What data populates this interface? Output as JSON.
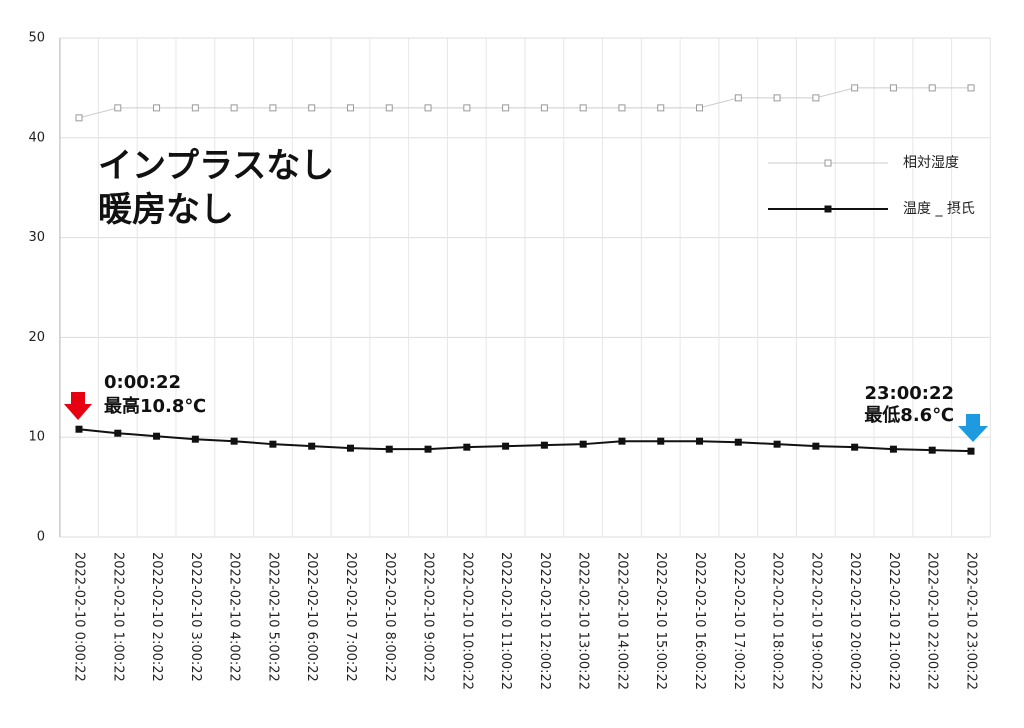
{
  "colors": {
    "humidity": "#cccccc",
    "temperature": "#111111",
    "grid": "#dddddd",
    "high_arrow": "#e60012",
    "low_arrow": "#1e9be0"
  },
  "overlay": {
    "line1": "インプラスなし",
    "line2": "暖房なし"
  },
  "annotations": {
    "high_time": "0:00:22",
    "high_label": "最高10.8℃",
    "low_time": "23:00:22",
    "low_label": "最低8.6℃"
  },
  "legend": {
    "humidity": "相対湿度",
    "temperature": "温度 _ 摂氏"
  },
  "chart_data": {
    "type": "line",
    "title": "",
    "xlabel": "",
    "ylabel": "",
    "ylim": [
      0,
      50
    ],
    "yticks": [
      0,
      10,
      20,
      30,
      40,
      50
    ],
    "grid": true,
    "legend_position": "right",
    "categories": [
      "2022-02-10 0:00:22",
      "2022-02-10 1:00:22",
      "2022-02-10 2:00:22",
      "2022-02-10 3:00:22",
      "2022-02-10 4:00:22",
      "2022-02-10 5:00:22",
      "2022-02-10 6:00:22",
      "2022-02-10 7:00:22",
      "2022-02-10 8:00:22",
      "2022-02-10 9:00:22",
      "2022-02-10 10:00:22",
      "2022-02-10 11:00:22",
      "2022-02-10 12:00:22",
      "2022-02-10 13:00:22",
      "2022-02-10 14:00:22",
      "2022-02-10 15:00:22",
      "2022-02-10 16:00:22",
      "2022-02-10 17:00:22",
      "2022-02-10 18:00:22",
      "2022-02-10 19:00:22",
      "2022-02-10 20:00:22",
      "2022-02-10 21:00:22",
      "2022-02-10 22:00:22",
      "2022-02-10 23:00:22"
    ],
    "series": [
      {
        "name": "相対湿度",
        "values": [
          42,
          43,
          43,
          43,
          43,
          43,
          43,
          43,
          43,
          43,
          43,
          43,
          43,
          43,
          43,
          43,
          43,
          44,
          44,
          44,
          45,
          45,
          45,
          45
        ]
      },
      {
        "name": "温度 _ 摂氏",
        "values": [
          10.8,
          10.4,
          10.1,
          9.8,
          9.6,
          9.3,
          9.1,
          8.9,
          8.8,
          8.8,
          9.0,
          9.1,
          9.2,
          9.3,
          9.6,
          9.6,
          9.6,
          9.5,
          9.3,
          9.1,
          9.0,
          8.8,
          8.7,
          8.6
        ]
      }
    ]
  }
}
